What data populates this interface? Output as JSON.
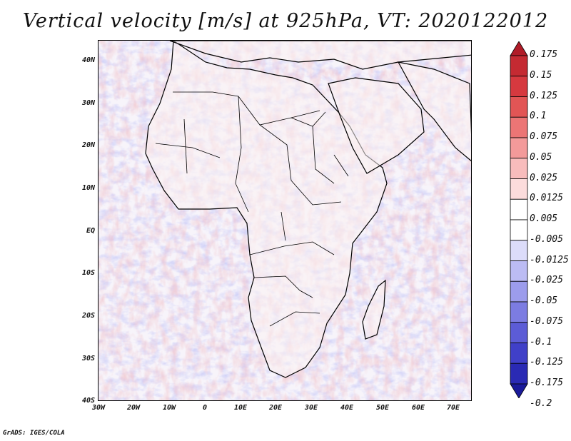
{
  "title": "Vertical velocity [m/s] at 925hPa, VT: 2020122012",
  "lat_labels": [
    "40N",
    "30N",
    "20N",
    "10N",
    "EQ",
    "10S",
    "20S",
    "30S",
    "40S"
  ],
  "lon_labels": [
    "30W",
    "20W",
    "10W",
    "0",
    "10E",
    "20E",
    "30E",
    "40E",
    "50E",
    "60E",
    "70E"
  ],
  "colorbar": {
    "labels": [
      "0.175",
      "0.15",
      "0.125",
      "0.1",
      "0.075",
      "0.05",
      "0.025",
      "0.0125",
      "0.005",
      "-0.005",
      "-0.0125",
      "-0.025",
      "-0.05",
      "-0.075",
      "-0.1",
      "-0.125",
      "-0.175",
      "-0.2"
    ],
    "colors": [
      "#b01c28",
      "#c42a32",
      "#d6393f",
      "#e25555",
      "#ec7575",
      "#f39a9a",
      "#f8bcbc",
      "#fcdcdc",
      "#ffffff",
      "#ffffff",
      "#dcdcfa",
      "#bcbcf4",
      "#9c9cec",
      "#7c7ce2",
      "#5c5cd6",
      "#4040c8",
      "#2a2ab4",
      "#1a1a9a"
    ]
  },
  "footer": "GrADS: IGES/COLA"
}
